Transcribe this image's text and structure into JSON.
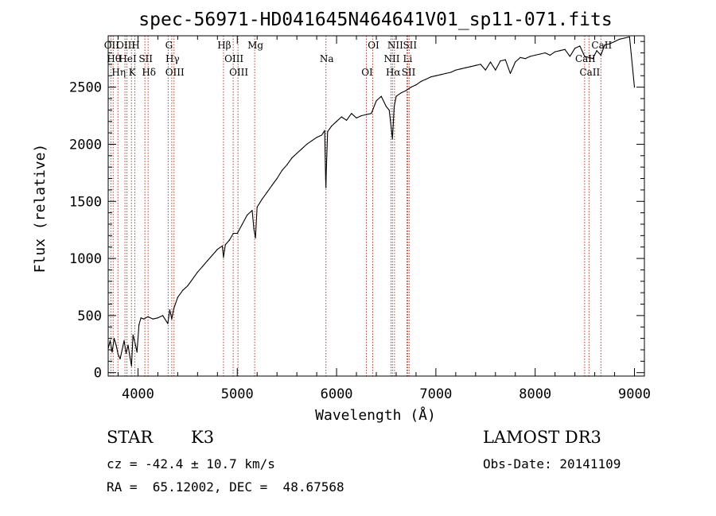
{
  "chart_data": {
    "type": "line",
    "title": "spec-56971-HD041645N464641V01_sp11-071.fits",
    "xlabel": "Wavelength (Å)",
    "ylabel": "Flux (relative)",
    "xlim": [
      3700,
      9100
    ],
    "ylim": [
      -30,
      2950
    ],
    "xticks": [
      4000,
      5000,
      6000,
      7000,
      8000,
      9000
    ],
    "yticks": [
      0,
      500,
      1000,
      1500,
      2000,
      2500
    ],
    "series": [
      {
        "name": "flux",
        "x": [
          3700,
          3720,
          3740,
          3760,
          3780,
          3800,
          3820,
          3840,
          3860,
          3880,
          3900,
          3920,
          3935,
          3950,
          3970,
          3990,
          4010,
          4030,
          4060,
          4100,
          4150,
          4200,
          4250,
          4300,
          4320,
          4340,
          4360,
          4400,
          4450,
          4500,
          4550,
          4600,
          4650,
          4700,
          4750,
          4800,
          4850,
          4861,
          4880,
          4920,
          4960,
          5000,
          5050,
          5100,
          5150,
          5167,
          5183,
          5200,
          5250,
          5300,
          5350,
          5400,
          5450,
          5500,
          5550,
          5600,
          5650,
          5700,
          5750,
          5800,
          5850,
          5880,
          5890,
          5893,
          5896,
          5910,
          5950,
          6000,
          6050,
          6100,
          6150,
          6200,
          6250,
          6300,
          6350,
          6400,
          6450,
          6500,
          6530,
          6563,
          6580,
          6600,
          6650,
          6700,
          6750,
          6800,
          6850,
          6900,
          6950,
          7000,
          7050,
          7100,
          7150,
          7200,
          7250,
          7300,
          7350,
          7400,
          7450,
          7500,
          7550,
          7600,
          7650,
          7700,
          7750,
          7800,
          7850,
          7900,
          7950,
          8000,
          8050,
          8100,
          8150,
          8200,
          8250,
          8300,
          8350,
          8400,
          8450,
          8498,
          8542,
          8580,
          8620,
          8662,
          8700,
          8750,
          8800,
          8850,
          8900,
          8950,
          9000
        ],
        "y": [
          210,
          280,
          180,
          300,
          240,
          160,
          120,
          200,
          280,
          170,
          240,
          130,
          60,
          330,
          260,
          180,
          420,
          480,
          470,
          490,
          470,
          480,
          500,
          430,
          550,
          470,
          560,
          660,
          720,
          760,
          820,
          880,
          930,
          980,
          1030,
          1080,
          1110,
          1010,
          1120,
          1160,
          1220,
          1220,
          1300,
          1380,
          1420,
          1260,
          1180,
          1450,
          1520,
          1580,
          1640,
          1700,
          1770,
          1820,
          1880,
          1920,
          1960,
          2000,
          2030,
          2060,
          2080,
          2120,
          1700,
          1620,
          1750,
          2110,
          2160,
          2200,
          2240,
          2210,
          2270,
          2230,
          2250,
          2260,
          2270,
          2380,
          2420,
          2330,
          2300,
          2050,
          2330,
          2420,
          2450,
          2470,
          2500,
          2520,
          2550,
          2570,
          2590,
          2600,
          2610,
          2620,
          2630,
          2650,
          2660,
          2670,
          2680,
          2690,
          2700,
          2650,
          2720,
          2650,
          2730,
          2740,
          2620,
          2720,
          2760,
          2750,
          2770,
          2780,
          2790,
          2800,
          2780,
          2810,
          2820,
          2830,
          2770,
          2840,
          2860,
          2770,
          2760,
          2750,
          2820,
          2780,
          2870,
          2880,
          2900,
          2920,
          2930,
          2940,
          2500
        ]
      }
    ],
    "line_markers": [
      {
        "wavelength": 3727,
        "label": "OII"
      },
      {
        "wavelength": 3750,
        "label": "Hθ"
      },
      {
        "wavelength": 3798,
        "label": "Hη"
      },
      {
        "wavelength": 3869,
        "label": "OIII"
      },
      {
        "wavelength": 3889,
        "label": "HeI"
      },
      {
        "wavelength": 3934,
        "label": "K"
      },
      {
        "wavelength": 3968,
        "label": "H"
      },
      {
        "wavelength": 4070,
        "label": "SII"
      },
      {
        "wavelength": 4102,
        "label": "Hδ"
      },
      {
        "wavelength": 4304,
        "label": "G"
      },
      {
        "wavelength": 4340,
        "label": "Hγ"
      },
      {
        "wavelength": 4363,
        "label": "OIII"
      },
      {
        "wavelength": 4861,
        "label": "Hβ"
      },
      {
        "wavelength": 4959,
        "label": "OIII"
      },
      {
        "wavelength": 5007,
        "label": "OIII"
      },
      {
        "wavelength": 5175,
        "label": "Mg"
      },
      {
        "wavelength": 5893,
        "label": "Na"
      },
      {
        "wavelength": 6300,
        "label": "OI"
      },
      {
        "wavelength": 6364,
        "label": "OI"
      },
      {
        "wavelength": 6548,
        "label": "NII"
      },
      {
        "wavelength": 6563,
        "label": "Hα"
      },
      {
        "wavelength": 6583,
        "label": "NII"
      },
      {
        "wavelength": 6708,
        "label": "Li"
      },
      {
        "wavelength": 6717,
        "label": "SII"
      },
      {
        "wavelength": 6731,
        "label": "SII"
      },
      {
        "wavelength": 8498,
        "label": "CaII"
      },
      {
        "wavelength": 8542,
        "label": "CaII"
      },
      {
        "wavelength": 8662,
        "label": "CaII"
      }
    ],
    "marker_color": "#c0392b",
    "line_color": "#000000"
  },
  "info": {
    "class": "STAR",
    "subclass": "K3",
    "survey": "LAMOST DR3",
    "redshift": "cz = -42.4 ± 10.7 km/s",
    "obs_date": "Obs-Date: 20141109",
    "coords": "RA =  65.12002, DEC =  48.67568"
  }
}
